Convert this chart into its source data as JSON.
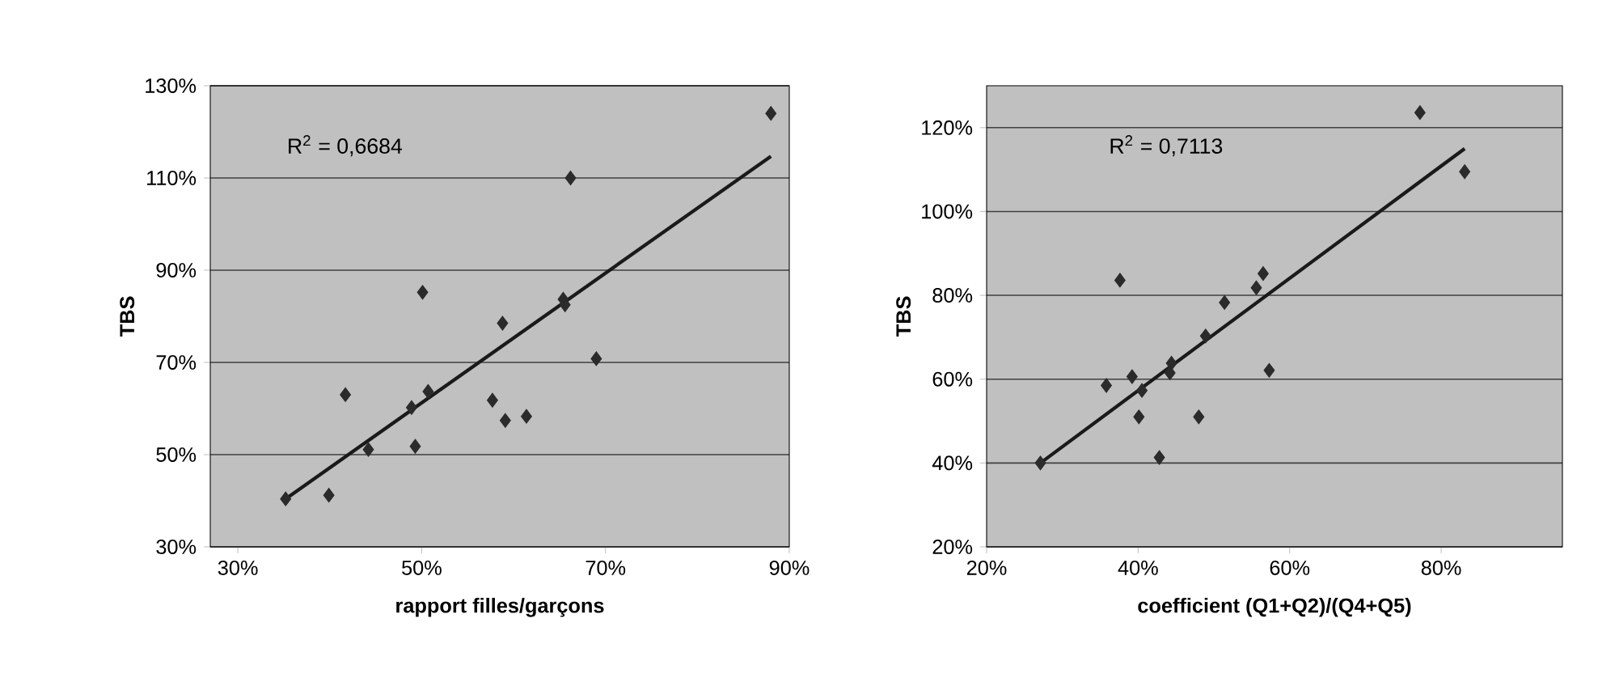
{
  "chart_data": [
    {
      "type": "scatter",
      "xlabel": "rapport filles/garçons",
      "ylabel": "TBS",
      "xlim": [
        27,
        90
      ],
      "ylim": [
        30,
        130
      ],
      "xticks": [
        {
          "value": 30,
          "label": "30%"
        },
        {
          "value": 50,
          "label": "50%"
        },
        {
          "value": 70,
          "label": "70%"
        },
        {
          "value": 90,
          "label": "90%"
        }
      ],
      "yticks": [
        {
          "value": 30,
          "label": "30%"
        },
        {
          "value": 50,
          "label": "50%"
        },
        {
          "value": 70,
          "label": "70%"
        },
        {
          "value": 90,
          "label": "90%"
        },
        {
          "value": 110,
          "label": "110%"
        },
        {
          "value": 130,
          "label": "130%"
        }
      ],
      "grid": "y",
      "annotations": [
        "R$^{2}$ = 0,6684"
      ],
      "series": [
        {
          "marker": "diamond",
          "color": "#2b2b2b",
          "x": [
            88.0,
            66.2,
            50.1,
            65.4,
            65.6,
            58.8,
            69.0,
            41.7,
            50.7,
            48.9,
            57.7,
            59.1,
            61.4,
            44.2,
            49.3,
            39.9,
            35.2
          ],
          "values": [
            124.0,
            110.0,
            85.2,
            83.7,
            82.5,
            78.5,
            70.8,
            63.0,
            63.7,
            60.2,
            61.8,
            57.4,
            58.3,
            51.1,
            51.8,
            41.2,
            40.4
          ]
        },
        {
          "type": "line",
          "color": "#1a1a1a",
          "x": [
            35.2,
            88.0
          ],
          "values": [
            40.4,
            114.7
          ]
        }
      ]
    },
    {
      "type": "scatter",
      "xlabel": "coefficient (Q1+Q2)/(Q4+Q5)",
      "ylabel": "TBS",
      "xlim": [
        20,
        96
      ],
      "ylim": [
        20,
        130
      ],
      "xticks": [
        {
          "value": 20,
          "label": "20%"
        },
        {
          "value": 40,
          "label": "40%"
        },
        {
          "value": 60,
          "label": "60%"
        },
        {
          "value": 80,
          "label": "80%"
        }
      ],
      "yticks": [
        {
          "value": 20,
          "label": "20%"
        },
        {
          "value": 40,
          "label": "40%"
        },
        {
          "value": 60,
          "label": "60%"
        },
        {
          "value": 80,
          "label": "80%"
        },
        {
          "value": 100,
          "label": "100%"
        },
        {
          "value": 120,
          "label": "120%"
        }
      ],
      "grid": "y",
      "annotations": [
        "R$^{2}$ = 0,7113"
      ],
      "series": [
        {
          "marker": "diamond",
          "color": "#2b2b2b",
          "x": [
            77.2,
            83.1,
            37.6,
            56.5,
            55.6,
            51.4,
            48.9,
            44.4,
            44.2,
            57.3,
            39.2,
            35.8,
            40.5,
            40.1,
            48.0,
            42.8,
            27.1
          ],
          "values": [
            123.6,
            109.5,
            83.6,
            85.2,
            81.8,
            78.3,
            70.3,
            63.8,
            61.5,
            62.1,
            60.6,
            58.5,
            57.3,
            51.0,
            51.0,
            41.3,
            40.0
          ]
        },
        {
          "type": "line",
          "color": "#1a1a1a",
          "x": [
            27.1,
            83.1
          ],
          "values": [
            40.0,
            115.0
          ]
        }
      ]
    }
  ]
}
